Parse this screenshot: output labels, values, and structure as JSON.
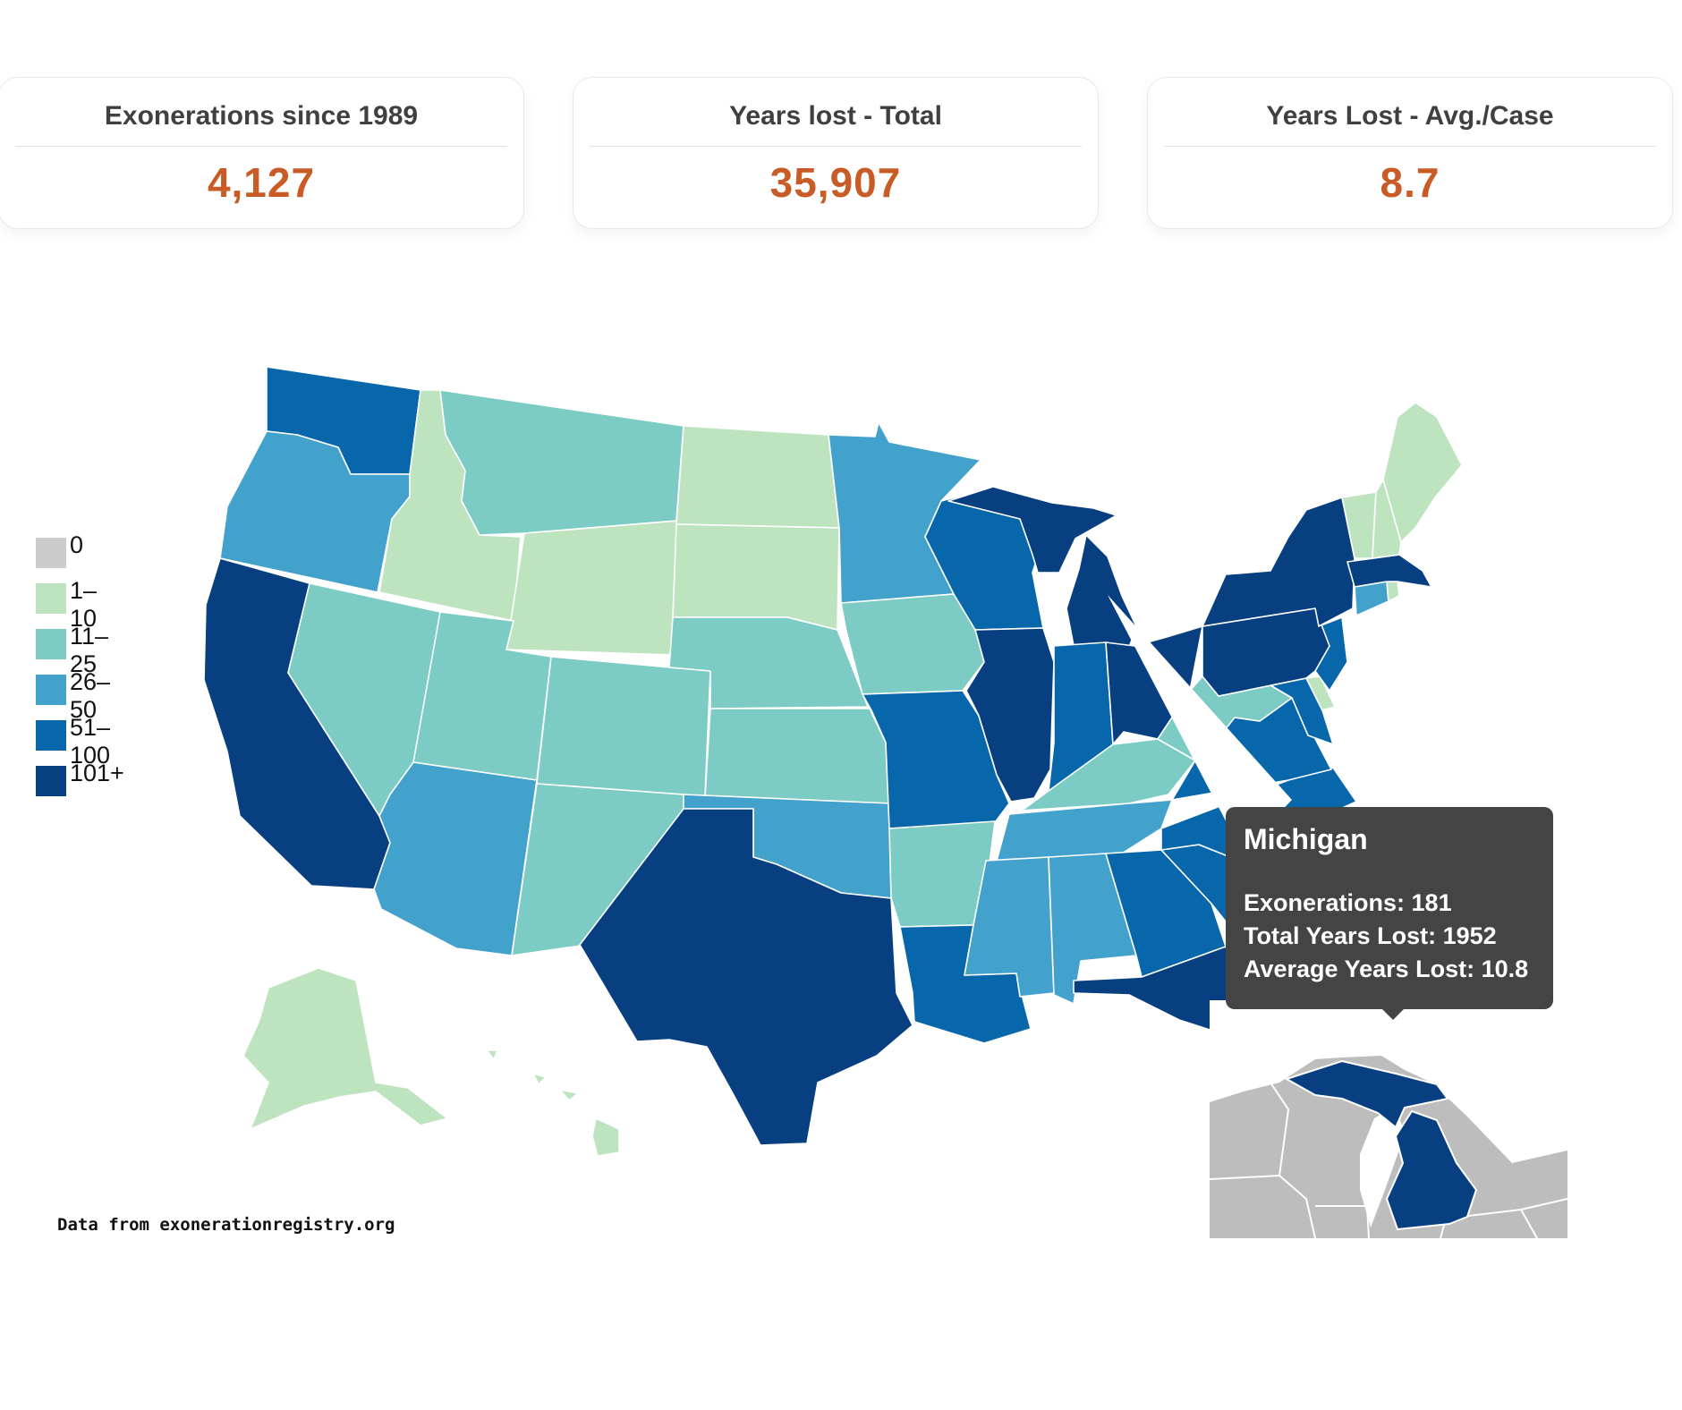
{
  "stats": [
    {
      "label": "Exonerations since 1989",
      "value": "4,127"
    },
    {
      "label": "Years lost - Total",
      "value": "35,907"
    },
    {
      "label": "Years Lost - Avg./Case",
      "value": "8.7"
    }
  ],
  "legend": [
    {
      "label": "0",
      "color": "#cccccc"
    },
    {
      "label": "1–10",
      "color": "#bde4bf"
    },
    {
      "label": "11–25",
      "color": "#7ccbc4"
    },
    {
      "label": "26–50",
      "color": "#43a2cb"
    },
    {
      "label": "51–100",
      "color": "#0866aa"
    },
    {
      "label": "101+",
      "color": "#083f80"
    }
  ],
  "states": {
    "WA": 4,
    "OR": 3,
    "CA": 5,
    "NV": 2,
    "ID": 1,
    "MT": 2,
    "WY": 1,
    "UT": 2,
    "CO": 2,
    "AZ": 3,
    "NM": 2,
    "ND": 1,
    "SD": 1,
    "NE": 2,
    "KS": 2,
    "OK": 3,
    "TX": 5,
    "MN": 3,
    "IA": 2,
    "MO": 4,
    "AR": 2,
    "LA": 4,
    "WI": 4,
    "IL": 5,
    "MI": 5,
    "IN": 4,
    "OH": 5,
    "KY": 2,
    "TN": 3,
    "MS": 3,
    "AL": 3,
    "GA": 4,
    "FL": 5,
    "SC": 4,
    "NC": 4,
    "VA": 4,
    "WV": 2,
    "MD": 4,
    "DE": 1,
    "NJ": 4,
    "PA": 5,
    "NY": 5,
    "CT": 3,
    "RI": 1,
    "MA": 5,
    "VT": 1,
    "NH": 1,
    "ME": 1,
    "AK": 1,
    "HI": 1
  },
  "tooltip": {
    "state": "Michigan",
    "exonerations_label": "Exonerations: 181",
    "total_label": "Total Years Lost: 1952",
    "avg_label": "Average Years Lost: 10.8"
  },
  "source_note": "Data from exonerationregistry.org"
}
